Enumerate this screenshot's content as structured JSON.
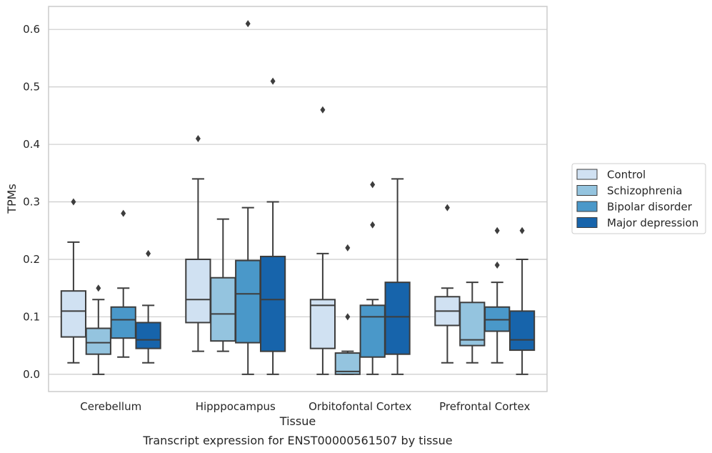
{
  "chart_data": {
    "type": "box",
    "xlabel": "Tissue",
    "ylabel": "TPMs",
    "caption": "Transcript expression for ENST00000561507 by tissue",
    "ylim": [
      -0.03,
      0.64
    ],
    "yticks": [
      "0.0",
      "0.1",
      "0.2",
      "0.3",
      "0.4",
      "0.5",
      "0.6"
    ],
    "grid": "horizontal",
    "legend_position": "right",
    "categories": [
      "Cerebellum",
      "Hipppocampus",
      "Orbitofontal Cortex",
      "Prefrontal Cortex"
    ],
    "series": [
      {
        "name": "Control",
        "color": "#d0e1f2",
        "boxes": [
          {
            "whislo": 0.02,
            "q1": 0.065,
            "med": 0.11,
            "q3": 0.145,
            "whishi": 0.23,
            "fliers": [
              0.3
            ]
          },
          {
            "whislo": 0.04,
            "q1": 0.09,
            "med": 0.13,
            "q3": 0.2,
            "whishi": 0.34,
            "fliers": [
              0.41
            ]
          },
          {
            "whislo": 0.0,
            "q1": 0.045,
            "med": 0.12,
            "q3": 0.13,
            "whishi": 0.21,
            "fliers": [
              0.46
            ]
          },
          {
            "whislo": 0.02,
            "q1": 0.085,
            "med": 0.11,
            "q3": 0.135,
            "whishi": 0.15,
            "fliers": [
              0.29
            ]
          }
        ]
      },
      {
        "name": "Schizophrenia",
        "color": "#94c4df",
        "boxes": [
          {
            "whislo": 0.0,
            "q1": 0.035,
            "med": 0.055,
            "q3": 0.08,
            "whishi": 0.13,
            "fliers": [
              0.15
            ]
          },
          {
            "whislo": 0.04,
            "q1": 0.058,
            "med": 0.105,
            "q3": 0.168,
            "whishi": 0.27,
            "fliers": []
          },
          {
            "whislo": 0.0,
            "q1": 0.0,
            "med": 0.005,
            "q3": 0.037,
            "whishi": 0.04,
            "fliers": [
              0.1,
              0.22
            ]
          },
          {
            "whislo": 0.02,
            "q1": 0.05,
            "med": 0.06,
            "q3": 0.125,
            "whishi": 0.16,
            "fliers": []
          }
        ]
      },
      {
        "name": "Bipolar disorder",
        "color": "#4a98c9",
        "boxes": [
          {
            "whislo": 0.03,
            "q1": 0.063,
            "med": 0.095,
            "q3": 0.117,
            "whishi": 0.15,
            "fliers": [
              0.28
            ]
          },
          {
            "whislo": 0.0,
            "q1": 0.055,
            "med": 0.14,
            "q3": 0.198,
            "whishi": 0.29,
            "fliers": [
              0.61
            ]
          },
          {
            "whislo": 0.0,
            "q1": 0.03,
            "med": 0.1,
            "q3": 0.12,
            "whishi": 0.13,
            "fliers": [
              0.26,
              0.33
            ]
          },
          {
            "whislo": 0.02,
            "q1": 0.075,
            "med": 0.095,
            "q3": 0.117,
            "whishi": 0.16,
            "fliers": [
              0.19,
              0.25
            ]
          }
        ]
      },
      {
        "name": "Major depression",
        "color": "#1764ab",
        "boxes": [
          {
            "whislo": 0.02,
            "q1": 0.045,
            "med": 0.06,
            "q3": 0.09,
            "whishi": 0.12,
            "fliers": [
              0.21
            ]
          },
          {
            "whislo": 0.0,
            "q1": 0.04,
            "med": 0.13,
            "q3": 0.205,
            "whishi": 0.3,
            "fliers": [
              0.51
            ]
          },
          {
            "whislo": 0.0,
            "q1": 0.035,
            "med": 0.1,
            "q3": 0.16,
            "whishi": 0.34,
            "fliers": []
          },
          {
            "whislo": 0.0,
            "q1": 0.042,
            "med": 0.06,
            "q3": 0.11,
            "whishi": 0.2,
            "fliers": [
              0.25
            ]
          }
        ]
      }
    ]
  }
}
